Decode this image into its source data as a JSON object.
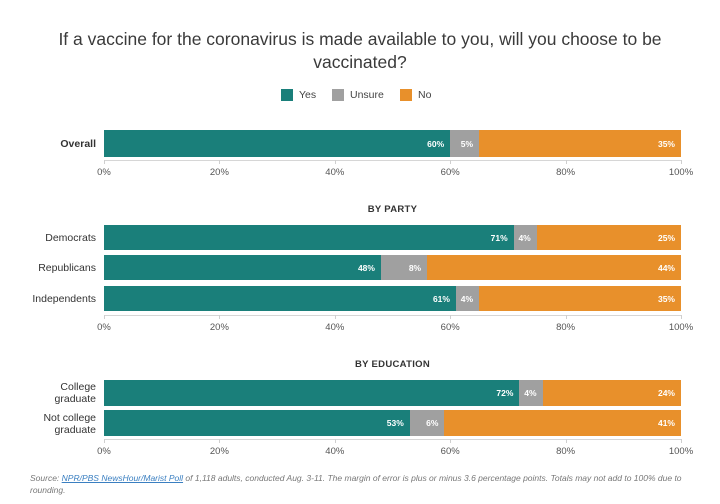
{
  "title": "If a vaccine for the coronavirus is made available to you, will you choose to be vaccinated?",
  "legend": [
    {
      "label": "Yes",
      "color": "#1a7f7a"
    },
    {
      "label": "Unsure",
      "color": "#a0a0a0"
    },
    {
      "label": "No",
      "color": "#e8902b"
    }
  ],
  "colors": {
    "yes": "#1a7f7a",
    "unsure": "#a0a0a0",
    "no": "#e8902b"
  },
  "chart_data": {
    "type": "bar",
    "orientation": "horizontal",
    "stacked": true,
    "title": "If a vaccine for the coronavirus is made available to you, will you choose to be vaccinated?",
    "series_names": [
      "Yes",
      "Unsure",
      "No"
    ],
    "xlim": [
      0,
      100
    ],
    "x_ticks": [
      "0%",
      "20%",
      "40%",
      "60%",
      "80%",
      "100%"
    ],
    "groups": [
      {
        "title": "",
        "rows": [
          {
            "label": "Overall",
            "bold": true,
            "values": [
              60,
              5,
              35
            ],
            "labels": [
              "60%",
              "5%",
              "35%"
            ]
          }
        ]
      },
      {
        "title": "BY PARTY",
        "rows": [
          {
            "label": "Democrats",
            "values": [
              71,
              4,
              25
            ],
            "labels": [
              "71%",
              "4%",
              "25%"
            ]
          },
          {
            "label": "Republicans",
            "values": [
              48,
              8,
              44
            ],
            "labels": [
              "48%",
              "8%",
              "44%"
            ]
          },
          {
            "label": "Independents",
            "values": [
              61,
              4,
              35
            ],
            "labels": [
              "61%",
              "4%",
              "35%"
            ]
          }
        ]
      },
      {
        "title": "BY EDUCATION",
        "rows": [
          {
            "label": "College graduate",
            "values": [
              72,
              4,
              24
            ],
            "labels": [
              "72%",
              "4%",
              "24%"
            ]
          },
          {
            "label": "Not college graduate",
            "values": [
              53,
              6,
              41
            ],
            "labels": [
              "53%",
              "6%",
              "41%"
            ]
          }
        ]
      }
    ]
  },
  "source": {
    "prefix": "Source: ",
    "link_text": "NPR/PBS NewsHour/Marist Poll",
    "rest": " of 1,118 adults, conducted Aug. 3-11. The margin of error is plus or minus 3.6 percentage points. Totals may not add to 100% due to rounding."
  }
}
